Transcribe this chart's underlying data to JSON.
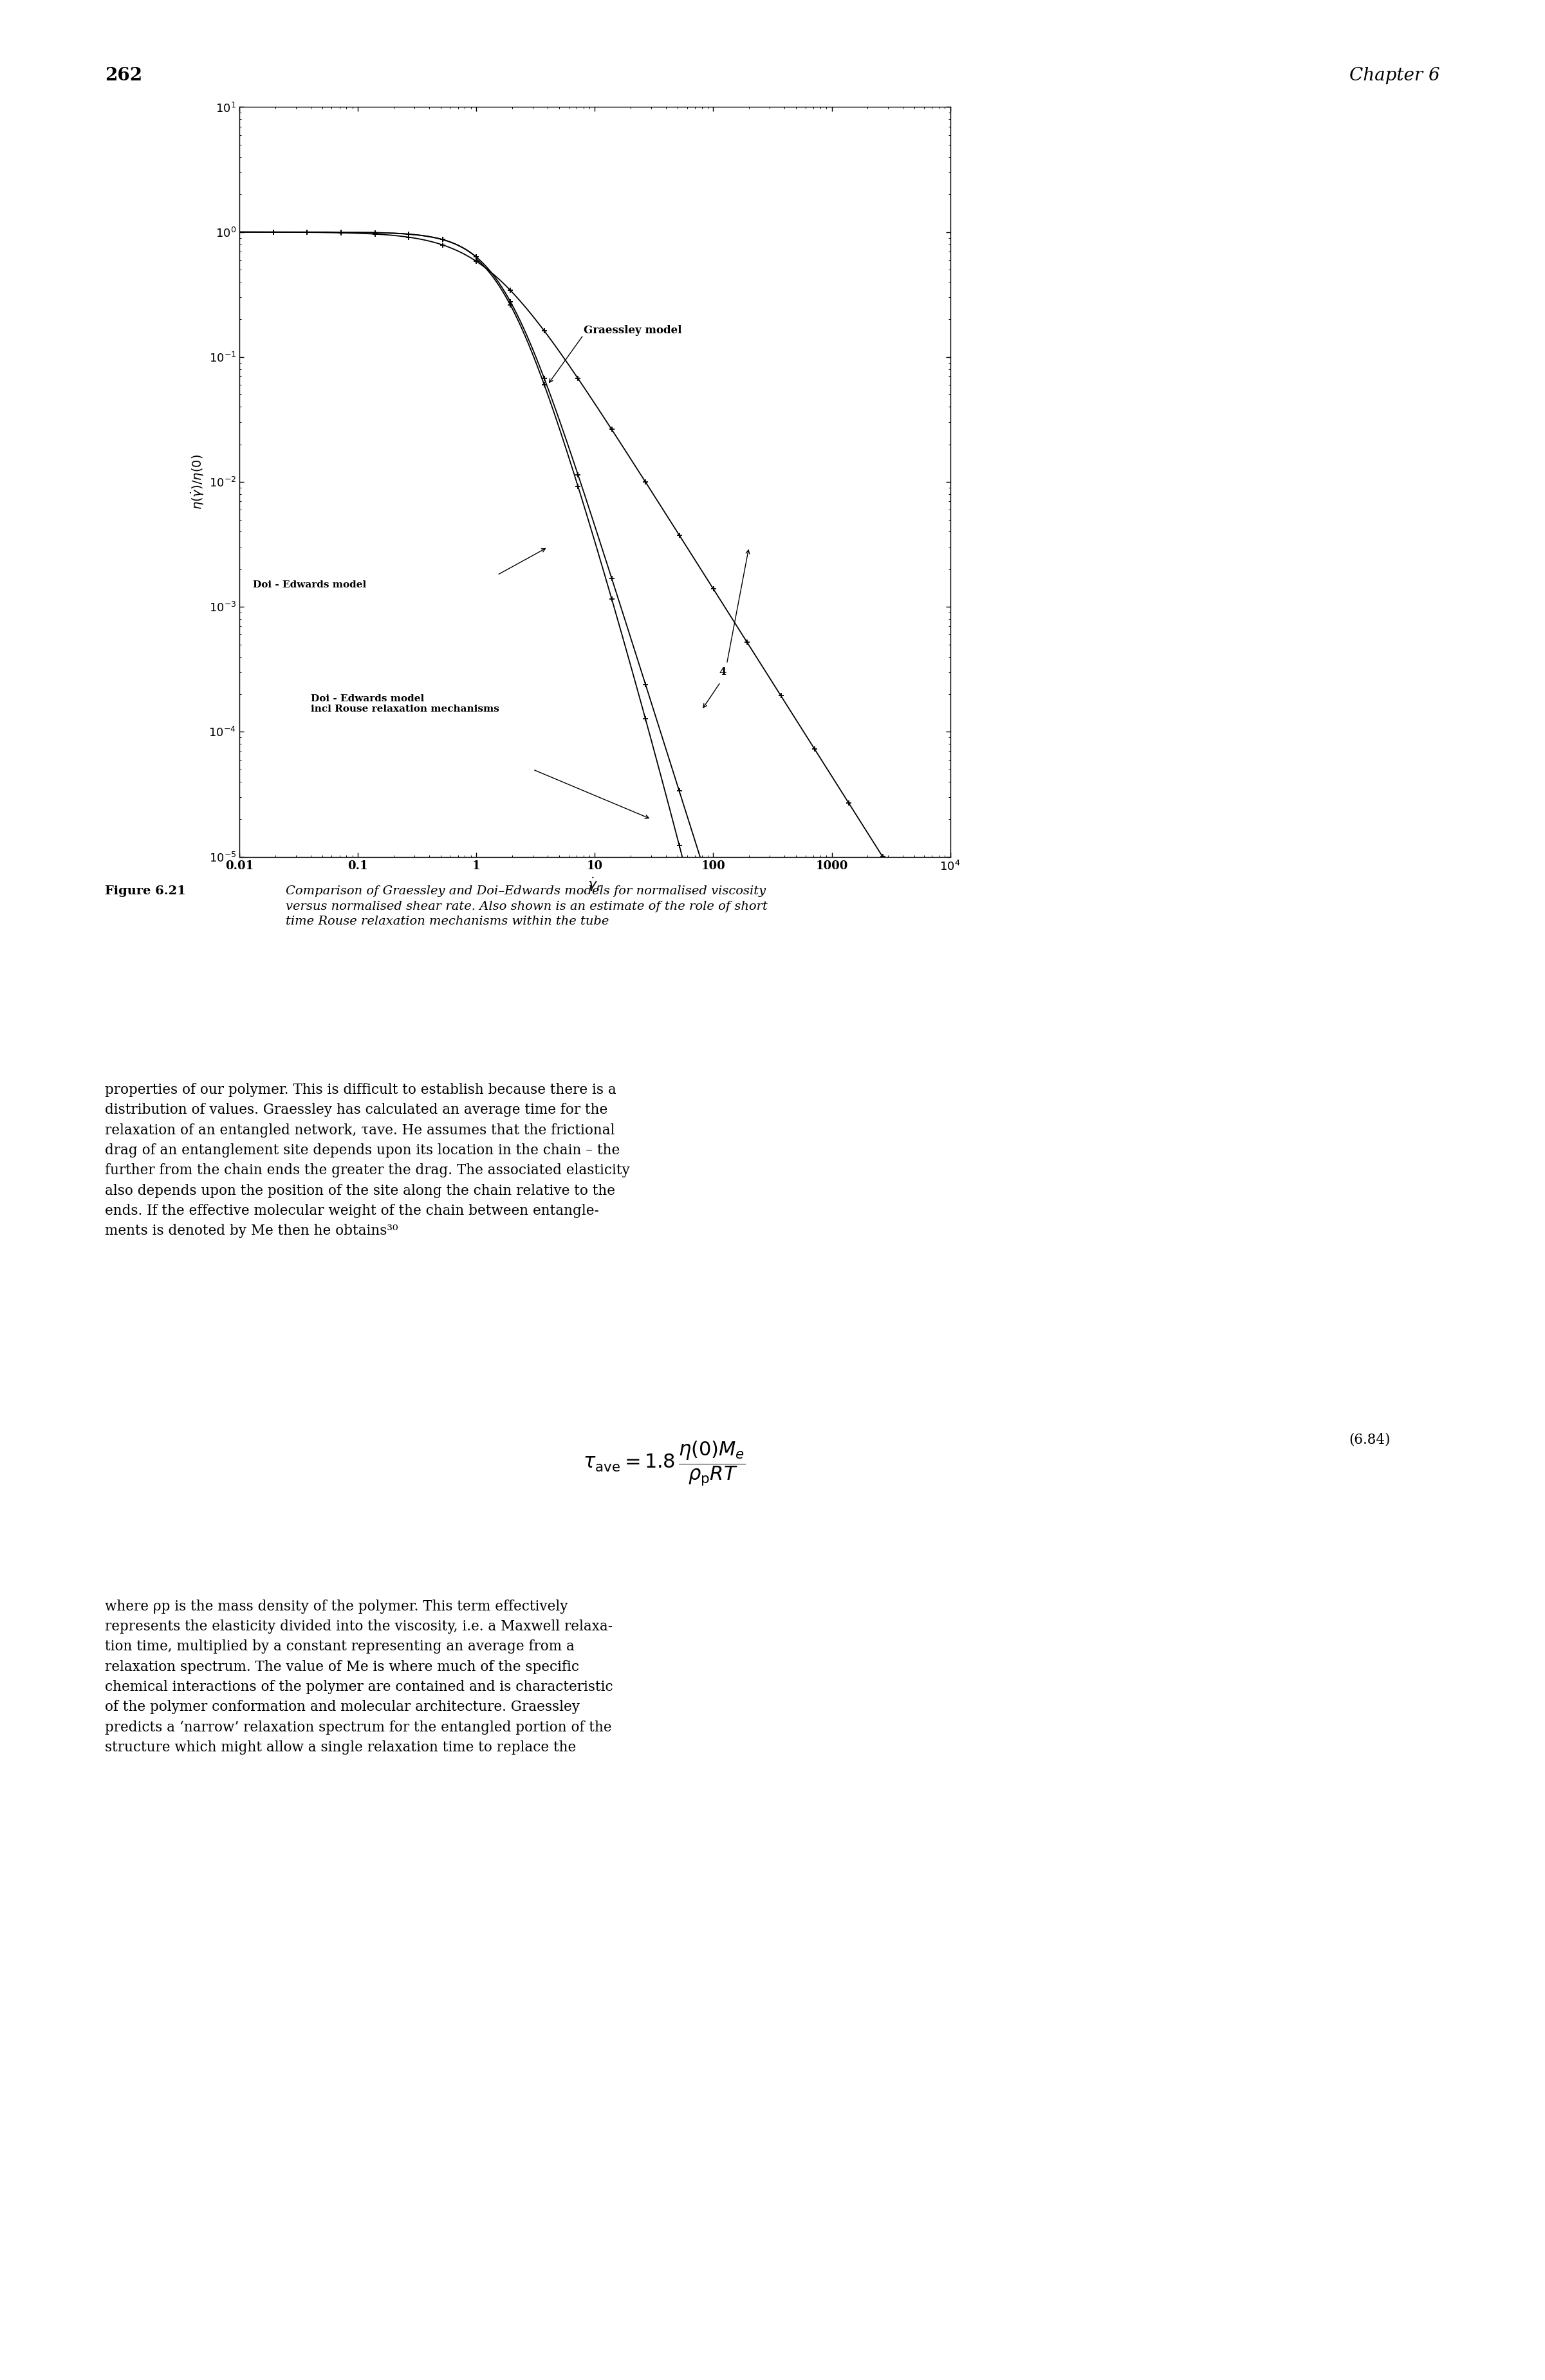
{
  "page_number": "262",
  "chapter": "Chapter 6",
  "figure_label": "Figure 6.21",
  "figure_caption_bold": "Comparison of Graessley and Doi–Edwards models for normalised viscosity\nversus normalised shear rate. Also shown is an estimate of the role of short\ntime Rouse relaxation mechanisms within the tube",
  "graessley_label": "Graessley model",
  "doi_edwards_label": "Doi - Edwards model",
  "doi_rouse_label": "Doi - Edwards model\nincl Rouse relaxation mechanisms",
  "annotation_4": "4",
  "background_color": "#ffffff",
  "body1": "properties of our polymer. This is difficult to establish because there is a\ndistribution of values. Graessley has calculated an average time for the\nrelaxation of an entangled network, τave. He assumes that the frictional\ndrag of an entanglement site depends upon its location in the chain – the\nfurther from the chain ends the greater the drag. The associated elasticity\nalso depends upon the position of the site along the chain relative to the\nends. If the effective molecular weight of the chain between entangle-\nments is denoted by Me then he obtains30",
  "equation_label": "(6.84)",
  "body2": "where ρp is the mass density of the polymer. This term effectively\nrepresents the elasticity divided into the viscosity, i.e. a Maxwell relaxa-\ntion time, multiplied by a constant representing an average from a\nrelaxation spectrum. The value of Me is where much of the specific\nchemical interactions of the polymer are contained and is characteristic\nof the polymer conformation and molecular architecture. Graessley\npredicts a ‘narrow’ relaxation spectrum for the entangled portion of the\nstructure which might allow a single relaxation time to replace the"
}
